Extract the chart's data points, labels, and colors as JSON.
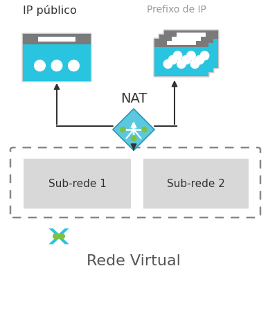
{
  "background_color": "#ffffff",
  "label_ip_publico": "IP público",
  "label_prefixo": "Prefixo de IP",
  "label_nat": "NAT",
  "label_subnet1": "Sub-rede 1",
  "label_subnet2": "Sub-rede 2",
  "label_rede_virtual": "Rede Virtual",
  "cyan_color": "#29c4e0",
  "cyan_dark": "#1a9db8",
  "gray_top": "#7a7a7a",
  "gray_frame": "#c8c8c8",
  "green_dot": "#7dc144",
  "arrow_color": "#333333",
  "dashed_border": "#888888",
  "text_dark": "#333333",
  "text_gray": "#999999",
  "text_rede": "#555555",
  "subnet_fill": "#d8d8d8"
}
